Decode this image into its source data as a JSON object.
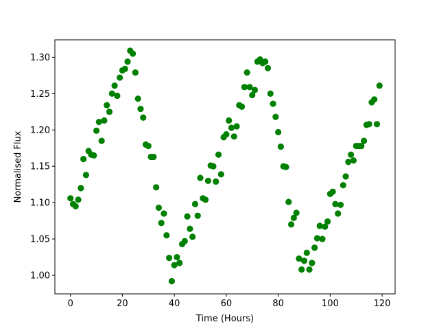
{
  "chart_data": {
    "type": "scatter",
    "title": "",
    "xlabel": "Time (Hours)",
    "ylabel": "Normalised Flux",
    "xlim": [
      -6,
      125
    ],
    "ylim": [
      0.9745,
      1.324
    ],
    "xticks": [
      0,
      20,
      40,
      60,
      80,
      100,
      120
    ],
    "yticks": [
      1.0,
      1.05,
      1.1,
      1.15,
      1.2,
      1.25,
      1.3
    ],
    "xtick_labels": [
      "0",
      "20",
      "40",
      "60",
      "80",
      "100",
      "120"
    ],
    "ytick_labels": [
      "1.00",
      "1.05",
      "1.10",
      "1.15",
      "1.20",
      "1.25",
      "1.30"
    ],
    "grid": false,
    "marker_color": "#008000",
    "x": [
      0,
      1,
      2,
      3,
      4,
      5,
      6,
      7,
      8,
      9,
      10,
      11,
      12,
      13,
      14,
      15,
      16,
      17,
      18,
      19,
      20,
      21,
      22,
      23,
      24,
      25,
      26,
      27,
      28,
      29,
      30,
      31,
      32,
      33,
      34,
      35,
      36,
      37,
      38,
      39,
      40,
      41,
      42,
      43,
      44,
      45,
      46,
      47,
      48,
      49,
      50,
      51,
      52,
      53,
      54,
      55,
      56,
      57,
      58,
      59,
      60,
      61,
      62,
      63,
      64,
      65,
      66,
      67,
      68,
      69,
      70,
      71,
      72,
      73,
      74,
      75,
      76,
      77,
      78,
      79,
      80,
      81,
      82,
      83,
      84,
      85,
      86,
      87,
      88,
      89,
      90,
      91,
      92,
      93,
      94,
      95,
      96,
      97,
      98,
      99,
      100,
      101,
      102,
      103,
      104,
      105,
      106,
      107,
      108,
      109,
      110,
      111,
      112,
      113,
      114,
      115,
      116,
      117,
      118,
      119
    ],
    "y": [
      1.106,
      1.098,
      1.095,
      1.104,
      1.12,
      1.16,
      1.138,
      1.171,
      1.166,
      1.165,
      1.199,
      1.211,
      1.185,
      1.213,
      1.234,
      1.225,
      1.25,
      1.261,
      1.247,
      1.272,
      1.282,
      1.284,
      1.294,
      1.309,
      1.305,
      1.279,
      1.243,
      1.229,
      1.217,
      1.18,
      1.178,
      1.163,
      1.163,
      1.121,
      1.093,
      1.072,
      1.085,
      1.055,
      1.024,
      0.992,
      1.014,
      1.025,
      1.017,
      1.043,
      1.047,
      1.081,
      1.064,
      1.053,
      1.098,
      1.082,
      1.134,
      1.106,
      1.104,
      1.13,
      1.151,
      1.15,
      1.129,
      1.166,
      1.139,
      1.19,
      1.194,
      1.213,
      1.203,
      1.191,
      1.205,
      1.234,
      1.232,
      1.259,
      1.279,
      1.259,
      1.248,
      1.255,
      1.294,
      1.297,
      1.292,
      1.294,
      1.285,
      1.25,
      1.236,
      1.218,
      1.197,
      1.177,
      1.15,
      1.149,
      1.101,
      1.07,
      1.079,
      1.086,
      1.023,
      1.008,
      1.02,
      1.031,
      1.008,
      1.017,
      1.038,
      1.051,
      1.068,
      1.05,
      1.067,
      1.074,
      1.112,
      1.115,
      1.098,
      1.085,
      1.097,
      1.124,
      1.136,
      1.156,
      1.166,
      1.158,
      1.178,
      1.178,
      1.178,
      1.185,
      1.207,
      1.208,
      1.238,
      1.242,
      1.208,
      1.261
    ]
  }
}
